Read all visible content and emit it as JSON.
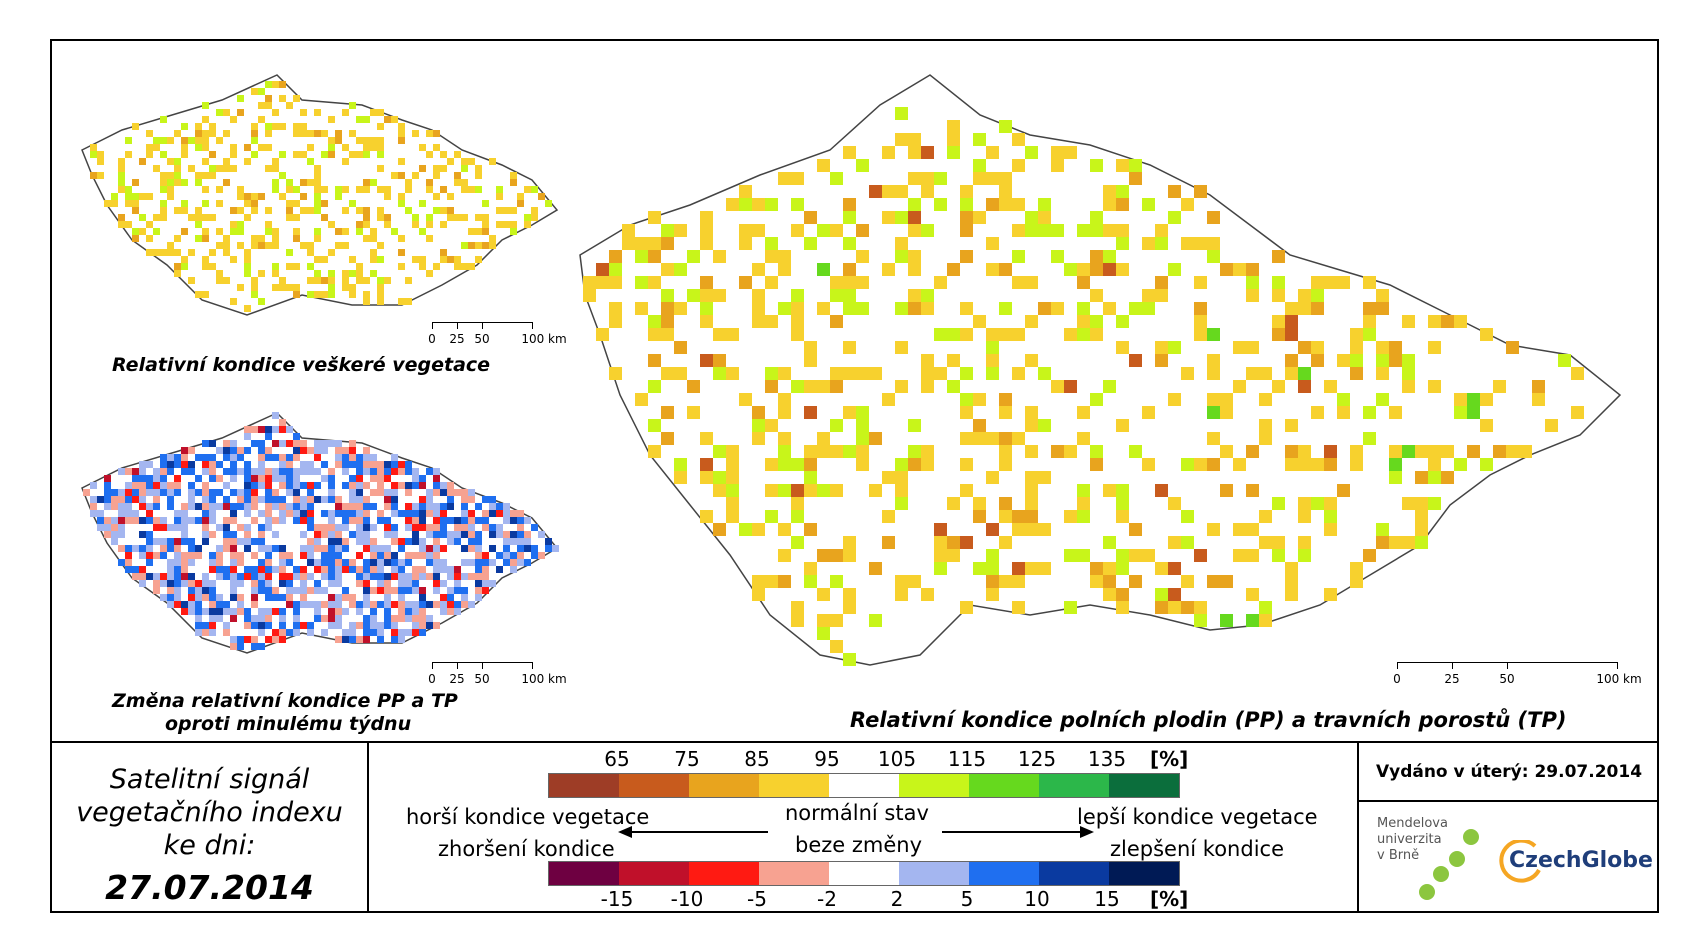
{
  "maps": {
    "main_caption": "Relativní kondice polních plodin (PP) a travních porostů (TP)",
    "top_left_caption": "Relativní kondice veškeré vegetace",
    "bottom_left_caption_line1": "Změna relativní kondice PP a TP",
    "bottom_left_caption_line2": "oproti minulému týdnu"
  },
  "scalebar": {
    "labels": [
      "0",
      "25",
      "50",
      "100 km"
    ]
  },
  "date_box": {
    "line1": "Satelitní signál",
    "line2": "vegetačního indexu",
    "line3": "ke dni:",
    "date": "27.07.2014"
  },
  "legend": {
    "top_values": [
      "65",
      "75",
      "85",
      "95",
      "105",
      "115",
      "125",
      "135"
    ],
    "top_unit": "[%]",
    "top_colors": [
      "#9e3d26",
      "#c85b1d",
      "#e8a41e",
      "#f7d12e",
      "#ffffff",
      "#c8f51a",
      "#66d91e",
      "#2cb74a",
      "#0b6e3c"
    ],
    "bottom_values": [
      "-15",
      "-10",
      "-5",
      "-2",
      "2",
      "5",
      "10",
      "15"
    ],
    "bottom_unit": "[%]",
    "bottom_colors": [
      "#6e0041",
      "#c0102a",
      "#ff1a12",
      "#f7a291",
      "#ffffff",
      "#a4b6f0",
      "#1f6ff0",
      "#0a3aa0",
      "#001a55"
    ],
    "worse_condition": "horší kondice vegetace",
    "normal_state": "normální stav",
    "better_condition": "lepší kondice vegetace",
    "deterioration": "zhoršení kondice",
    "no_change": "beze změny",
    "improvement": "zlepšení kondice"
  },
  "issued": "Vydáno v úterý: 29.07.2014",
  "logos": {
    "mendel_line1": "Mendelova",
    "mendel_line2": "univerzita",
    "mendel_line3": "v Brně",
    "czechglobe": "CzechGlobe"
  }
}
